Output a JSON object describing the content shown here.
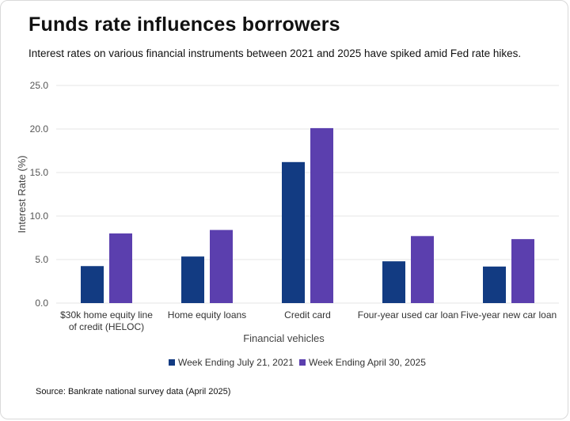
{
  "header": {
    "title": "Funds rate influences borrowers",
    "subtitle": "Interest rates on various financial instruments between 2021 and 2025 have spiked amid Fed rate hikes."
  },
  "footer": {
    "source": "Source: Bankrate national survey data (April 2025)"
  },
  "chart_data": {
    "type": "bar",
    "categories": [
      [
        "$30k home equity line",
        "of credit (HELOC)"
      ],
      [
        "Home equity loans"
      ],
      [
        "Credit card"
      ],
      [
        "Four-year used car loan"
      ],
      [
        "Five-year new car loan"
      ]
    ],
    "series": [
      {
        "name": "Week Ending July 21, 2021",
        "color": "#123b82",
        "values": [
          4.25,
          5.35,
          16.2,
          4.8,
          4.2
        ]
      },
      {
        "name": "Week Ending April 30, 2025",
        "color": "#5b3fae",
        "values": [
          8.0,
          8.4,
          20.1,
          7.7,
          7.35
        ]
      }
    ],
    "xlabel": "Financial vehicles",
    "ylabel": "Interest Rate (%)",
    "ylim": [
      0,
      25
    ],
    "yticks": [
      "0.0",
      "5.0",
      "10.0",
      "15.0",
      "20.0",
      "25.0"
    ],
    "grid": true,
    "legend": "bottom-center"
  }
}
